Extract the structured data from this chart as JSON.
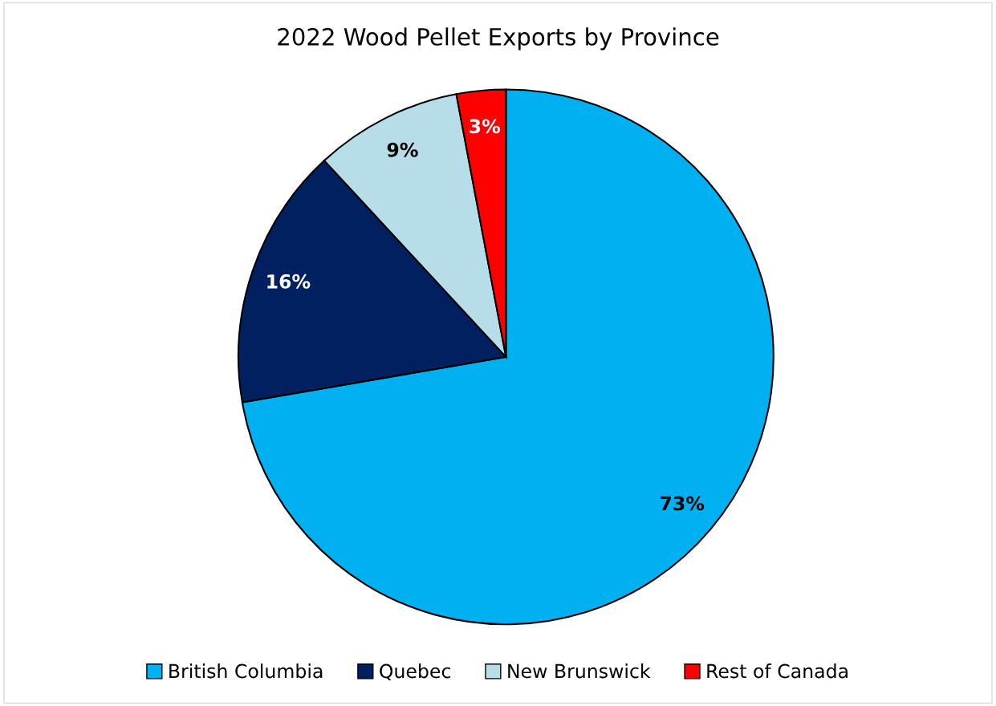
{
  "chart_data": {
    "type": "pie",
    "title": "2022 Wood Pellet Exports by Province",
    "categories": [
      "British Columbia",
      "Quebec",
      "New Brunswick",
      "Rest of Canada"
    ],
    "values": [
      73,
      16,
      9,
      3
    ],
    "colors": [
      "#00b0f0",
      "#002060",
      "#b7dee8",
      "#ff0000"
    ],
    "value_labels": [
      "73%",
      "16%",
      "9%",
      "3%"
    ],
    "legend": "bottom"
  }
}
